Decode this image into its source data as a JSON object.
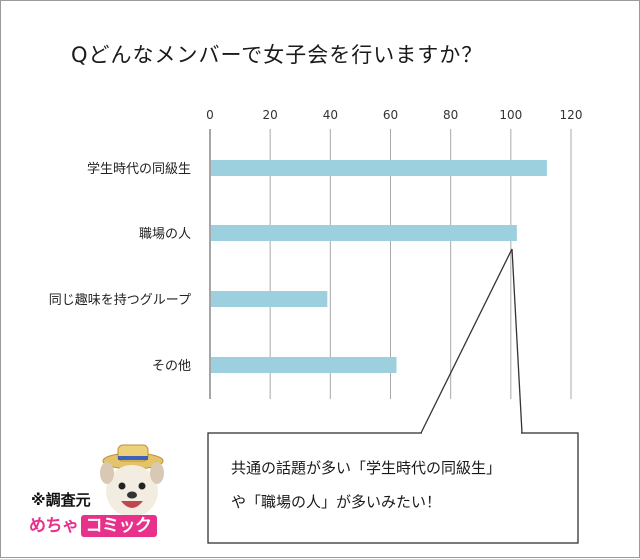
{
  "title": "Qどんなメンバーで女子会を行いますか？",
  "chart_data": {
    "type": "bar",
    "orientation": "horizontal",
    "categories": [
      "学生時代の同級生",
      "職場の人",
      "同じ趣味を持つグループ",
      "その他"
    ],
    "values": [
      112,
      102,
      39,
      62
    ],
    "xlim": [
      0,
      120
    ],
    "xticks": [
      0,
      20,
      40,
      60,
      80,
      100,
      120
    ],
    "xlabel": "",
    "ylabel": "",
    "grid": true,
    "bar_color": "#9cd0de"
  },
  "callout": {
    "line1": "共通の話題が多い「学生時代の同級生」",
    "line2": "や「職場の人」が多いみたい！"
  },
  "source": {
    "label": "※調査元",
    "logo_part1": "めちゃ",
    "logo_part2": "コミック"
  }
}
